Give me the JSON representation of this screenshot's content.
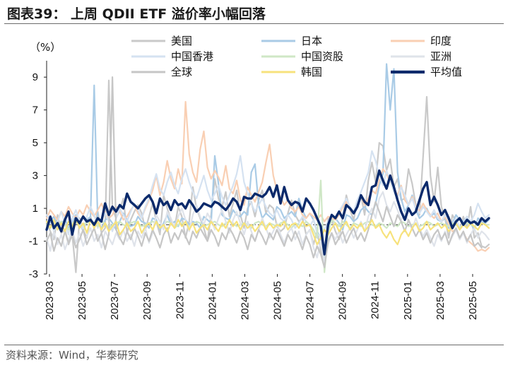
{
  "header": {
    "title": "图表39：  上周 QDII ETF 溢价率小幅回落"
  },
  "footer": {
    "source": "资料来源：Wind，华泰研究"
  },
  "chart_data": {
    "type": "line",
    "title": "",
    "ylabel": "（%）",
    "ylim": [
      -3,
      10
    ],
    "yticks": [
      9,
      7,
      5,
      3,
      1,
      -1,
      -3
    ],
    "xticks": [
      "2023-03",
      "2023-05",
      "2023-07",
      "2023-09",
      "2023-11",
      "2024-01",
      "2024-03",
      "2024-05",
      "2024-07",
      "2024-09",
      "2024-11",
      "2025-01",
      "2025-03",
      "2025-05"
    ],
    "x_start": "2023-03",
    "x_end": "2025-06",
    "legend_position": "top",
    "grid": false,
    "series": [
      {
        "name": "美国",
        "color": "#c9c9c9",
        "width": 2.2,
        "values": [
          0.2,
          -0.4,
          -0.9,
          0.6,
          -0.5,
          -0.3,
          -1.2,
          -0.6,
          -2.9,
          0.4,
          -0.3,
          -0.8,
          0.5,
          -0.2,
          0.8,
          -0.5,
          -0.2,
          8.8,
          1.0,
          0.4,
          0.9,
          1.6,
          -0.5,
          0.3,
          0.8,
          1.2,
          0.7,
          -0.3,
          0.5,
          1.3,
          0.2,
          -0.6,
          1.8,
          1.0,
          0.3,
          -0.2,
          1.1,
          0.5,
          -0.8,
          0.2,
          2.3,
          1.0,
          0.4,
          -0.2,
          -1.0,
          0.6,
          2.8,
          1.6,
          1.1,
          2.0,
          0.5,
          1.3,
          2.1,
          0.6,
          -0.2,
          1.0,
          1.4,
          0.5,
          1.5,
          2.1,
          0.7,
          1.2,
          1.0,
          -0.1,
          -0.4,
          -0.2,
          0.7,
          1.5,
          0.6,
          0.2,
          0.4,
          -0.6,
          -0.3,
          -1.2,
          -0.4,
          -1.6,
          -2.6,
          0.4,
          0.3,
          -0.4,
          -0.9,
          0.5,
          1.8,
          0.9,
          0.3,
          1.5,
          1.8,
          0.6,
          2.7,
          3.8,
          2.6,
          5.0,
          4.8,
          3.3,
          4.0,
          2.3,
          2.8,
          1.5,
          1.6,
          3.4,
          2.5,
          1.2,
          0.6,
          4.2,
          7.8,
          3.0,
          1.4,
          3.5,
          1.1,
          0.4,
          -0.8,
          0.6,
          0.2,
          -0.3,
          0.5,
          -0.2,
          1.1,
          -0.8,
          -0.5,
          -1.3,
          -1.4,
          -1.2
        ]
      },
      {
        "name": "日本",
        "color": "#a9cbe6",
        "width": 2.2,
        "values": [
          -0.3,
          0.2,
          0.5,
          -0.1,
          0.0,
          0.4,
          -0.2,
          0.1,
          0.6,
          0.2,
          -0.4,
          0.3,
          0.5,
          8.5,
          0.1,
          -0.2,
          0.3,
          0.4,
          0.1,
          -0.3,
          0.2,
          0.7,
          0.3,
          -0.1,
          0.0,
          0.5,
          0.2,
          0.1,
          -0.2,
          0.4,
          0.3,
          -0.3,
          0.1,
          0.6,
          0.0,
          0.2,
          -0.1,
          0.4,
          0.3,
          0.0,
          0.2,
          0.1,
          -0.2,
          0.5,
          0.3,
          0.1,
          4.2,
          2.5,
          0.6,
          0.4,
          0.3,
          0.9,
          0.6,
          0.5,
          0.8,
          0.6,
          3.2,
          3.7,
          1.2,
          0.4,
          0.7,
          0.5,
          0.3,
          1.1,
          0.9,
          0.4,
          0.6,
          0.8,
          0.5,
          1.6,
          0.9,
          0.4,
          0.7,
          0.3,
          -0.4,
          -0.8,
          -2.3,
          -0.2,
          0.3,
          0.4,
          0.1,
          -0.3,
          0.6,
          0.5,
          0.2,
          0.4,
          0.9,
          1.1,
          0.8,
          0.6,
          1.3,
          2.4,
          3.1,
          9.8,
          7.0,
          9.5,
          3.2,
          1.6,
          0.8,
          1.2,
          1.8,
          0.9,
          0.4,
          0.6,
          1.0,
          0.5,
          0.7,
          0.3,
          0.2,
          0.4,
          -0.2,
          0.1,
          0.6,
          0.3,
          0.2,
          0.5,
          0.1,
          -0.3,
          0.4,
          0.2,
          0.1,
          0.3
        ]
      },
      {
        "name": "印度",
        "color": "#f9cfb3",
        "width": 2.2,
        "values": [
          0.4,
          0.9,
          0.6,
          0.3,
          0.8,
          0.5,
          1.1,
          0.7,
          0.4,
          0.9,
          0.6,
          1.2,
          0.8,
          0.5,
          0.9,
          1.3,
          0.7,
          0.4,
          0.6,
          1.1,
          0.8,
          0.3,
          0.5,
          0.9,
          1.2,
          0.7,
          0.4,
          1.0,
          1.5,
          2.1,
          3.0,
          1.8,
          2.6,
          3.9,
          2.8,
          2.2,
          3.4,
          2.5,
          7.5,
          4.3,
          3.2,
          2.6,
          4.6,
          5.7,
          3.5,
          2.8,
          3.3,
          2.9,
          2.4,
          3.6,
          2.2,
          1.9,
          2.7,
          1.5,
          1.2,
          2.3,
          1.8,
          1.4,
          2.0,
          2.6,
          3.8,
          4.9,
          3.0,
          2.1,
          1.7,
          1.2,
          1.5,
          1.0,
          0.8,
          1.1,
          0.6,
          0.4,
          0.7,
          0.5,
          0.3,
          0.6,
          0.2,
          0.5,
          0.4,
          0.3,
          0.6,
          1.1,
          1.4,
          0.9,
          0.7,
          1.3,
          1.8,
          1.2,
          1.6,
          2.1,
          1.9,
          2.7,
          3.4,
          3.1,
          2.6,
          2.2,
          1.8,
          2.4,
          1.5,
          1.2,
          1.7,
          1.1,
          0.8,
          1.3,
          0.9,
          0.6,
          0.4,
          0.7,
          0.2,
          0.5,
          0.0,
          -0.4,
          -0.3,
          -0.8,
          -0.5,
          -0.9,
          -1.1,
          -1.3,
          -1.6,
          -1.5,
          -1.6,
          -1.4
        ]
      },
      {
        "name": "中国香港",
        "color": "#d5e2f1",
        "width": 2.2,
        "values": [
          0.6,
          0.3,
          -0.4,
          0.2,
          0.8,
          0.1,
          -0.6,
          0.4,
          0.9,
          0.2,
          -0.3,
          0.5,
          1.1,
          0.6,
          -0.2,
          0.3,
          0.7,
          0.2,
          -0.4,
          0.4,
          1.0,
          0.6,
          0.2,
          0.8,
          1.3,
          0.9,
          0.4,
          1.1,
          1.6,
          2.4,
          3.1,
          2.2,
          1.8,
          2.6,
          3.2,
          2.4,
          1.9,
          2.8,
          3.4,
          2.6,
          2.0,
          1.6,
          2.3,
          3.0,
          2.1,
          1.5,
          1.9,
          2.4,
          1.7,
          1.2,
          1.8,
          2.4,
          3.1,
          4.2,
          2.6,
          1.9,
          1.3,
          0.8,
          1.2,
          1.6,
          1.1,
          0.7,
          0.5,
          0.9,
          0.4,
          0.2,
          0.6,
          0.3,
          -0.2,
          0.1,
          0.5,
          0.2,
          -0.1,
          0.3,
          -0.5,
          -0.8,
          -0.3,
          0.2,
          0.6,
          0.4,
          0.8,
          1.2,
          1.6,
          1.1,
          0.8,
          1.5,
          2.0,
          2.6,
          3.2,
          4.5,
          3.9,
          3.0,
          2.4,
          3.3,
          2.7,
          2.0,
          1.6,
          2.3,
          1.8,
          1.2,
          1.6,
          1.0,
          0.7,
          1.1,
          0.8,
          0.5,
          0.9,
          0.4,
          0.2,
          0.6,
          0.3,
          0.0,
          0.4,
          -0.2,
          0.1,
          0.5,
          0.2,
          0.6,
          1.3,
          0.8,
          0.4,
          0.6
        ]
      },
      {
        "name": "中国资股",
        "color": "#cfe7c6",
        "width": 2.2,
        "values": [
          0.0,
          -0.2,
          0.1,
          -0.1,
          0.2,
          0.0,
          -0.3,
          0.1,
          0.2,
          -0.1,
          0.0,
          0.1,
          0.3,
          0.1,
          -0.1,
          0.2,
          0.1,
          -0.2,
          0.0,
          0.1,
          0.2,
          0.0,
          -0.1,
          0.1,
          0.2,
          0.1,
          -0.1,
          0.0,
          0.1,
          0.2,
          0.1,
          -0.1,
          0.0,
          0.2,
          0.1,
          -0.2,
          0.0,
          0.1,
          0.1,
          -0.1,
          0.0,
          0.2,
          0.1,
          -0.1,
          0.0,
          0.1,
          0.2,
          0.0,
          -0.1,
          0.1,
          0.2,
          0.1,
          -0.1,
          0.0,
          0.1,
          0.0,
          -0.2,
          0.1,
          0.2,
          0.0,
          -0.1,
          0.1,
          0.0,
          -0.1,
          0.1,
          0.2,
          0.0,
          -0.2,
          0.1,
          0.0,
          -0.1,
          0.2,
          0.0,
          -0.3,
          -0.8,
          2.7,
          -2.9,
          -0.5,
          0.3,
          0.1,
          -0.1,
          0.2,
          0.0,
          -0.2,
          0.1,
          0.0,
          -0.1,
          0.1,
          0.2,
          0.0,
          -0.1,
          0.1,
          0.0,
          -0.2,
          0.1,
          0.0,
          -0.1,
          0.2,
          0.1,
          -0.1,
          0.0,
          0.1,
          -0.1,
          0.0,
          0.2,
          0.1,
          -0.1,
          0.0,
          0.1,
          0.0,
          -0.1,
          0.1,
          0.0,
          -0.2,
          0.0,
          0.1,
          0.0,
          -0.1,
          0.0,
          0.1,
          0.0,
          0.0
        ]
      },
      {
        "name": "亚洲",
        "color": "#dfe3ea",
        "width": 2.2,
        "values": [
          -0.8,
          -1.6,
          -0.4,
          -1.2,
          -0.6,
          -1.5,
          -0.9,
          -0.3,
          -1.1,
          -0.5,
          -1.3,
          -0.7,
          -0.2,
          -1.0,
          -0.6,
          -1.4,
          -0.4,
          -0.8,
          -1.2,
          -0.5,
          -0.9,
          -0.3,
          -1.0,
          -0.6,
          -1.3,
          -0.4,
          -0.8,
          -0.2,
          -1.1,
          -0.5,
          0.6,
          0.2,
          -0.3,
          0.8,
          0.4,
          -0.2,
          0.5,
          1.0,
          0.3,
          -0.4,
          0.6,
          1.2,
          0.5,
          0.0,
          0.7,
          0.3,
          -0.3,
          0.4,
          0.9,
          0.2,
          -0.5,
          0.3,
          0.8,
          0.1,
          -0.6,
          0.2,
          -0.4,
          -1.0,
          -0.3,
          0.4,
          -0.2,
          -0.8,
          -0.4,
          0.1,
          -0.6,
          -1.1,
          -0.5,
          -0.2,
          -0.9,
          -0.4,
          -1.2,
          -0.6,
          -0.3,
          -1.4,
          -2.0,
          -1.0,
          -2.3,
          -1.2,
          -0.5,
          -0.9,
          -0.4,
          -1.1,
          -0.6,
          -0.2,
          -0.8,
          -0.3,
          0.2,
          -0.4,
          0.5,
          1.0,
          0.4,
          1.6,
          2.0,
          1.2,
          0.8,
          1.4,
          0.9,
          0.3,
          0.7,
          0.2,
          -0.3,
          0.4,
          -0.2,
          -0.7,
          -0.3,
          -0.8,
          -1.3,
          -0.6,
          -1.0,
          -0.4,
          -1.2,
          -0.7,
          -0.3,
          -0.9,
          -0.5,
          -1.1,
          -0.6,
          -0.2,
          -0.8,
          -0.4,
          -0.6,
          -0.9
        ]
      },
      {
        "name": "全球",
        "color": "#c6c6c6",
        "width": 2.2,
        "values": [
          -1.0,
          -0.5,
          -1.6,
          -0.8,
          -1.3,
          -0.4,
          -1.1,
          -0.6,
          -1.4,
          -0.9,
          -0.3,
          -1.2,
          -0.7,
          -0.2,
          -1.0,
          -0.5,
          -1.5,
          -0.6,
          9.0,
          -0.3,
          -0.8,
          -1.2,
          -0.4,
          -0.9,
          -0.2,
          -0.7,
          -1.3,
          -0.5,
          -1.0,
          -0.3,
          -0.8,
          -1.4,
          -0.6,
          -0.2,
          -1.1,
          -0.5,
          -0.9,
          -0.3,
          -0.7,
          -1.2,
          -0.4,
          -0.8,
          -0.2,
          -0.6,
          -1.0,
          -0.3,
          -0.7,
          -1.3,
          -0.5,
          -0.9,
          -0.2,
          -0.6,
          -1.1,
          -0.4,
          -0.8,
          -1.5,
          -0.6,
          -1.0,
          -0.3,
          -0.7,
          -1.2,
          -0.5,
          -0.9,
          -0.3,
          -0.8,
          -1.3,
          -0.6,
          -1.0,
          -0.4,
          -0.9,
          -1.5,
          -0.7,
          -1.2,
          -2.0,
          -1.3,
          -1.8,
          -2.6,
          -1.0,
          -0.5,
          -1.2,
          -0.8,
          -0.4,
          -1.1,
          -0.6,
          -0.2,
          -0.9,
          -0.5,
          -1.0,
          -0.3,
          0.6,
          1.4,
          0.8,
          0.2,
          1.1,
          0.5,
          -0.1,
          0.6,
          0.2,
          -0.4,
          0.3,
          -0.2,
          -0.7,
          -0.3,
          -0.9,
          -0.5,
          -1.1,
          -0.6,
          -0.3,
          -0.9,
          -0.5,
          -1.2,
          -0.6,
          -0.2,
          -0.8,
          -0.4,
          -1.0,
          -0.6,
          -1.3,
          -1.1,
          -1.4
        ]
      },
      {
        "name": "韩国",
        "color": "#f7e27c",
        "width": 2.2,
        "values": [
          0.2,
          -0.2,
          0.3,
          -0.3,
          0.1,
          -0.4,
          0.2,
          -0.1,
          0.4,
          -0.2,
          0.1,
          -0.5,
          0.3,
          -0.2,
          0.2,
          -0.3,
          0.1,
          -0.4,
          -0.1,
          0.2,
          -0.6,
          -0.3,
          0.1,
          -0.4,
          -0.2,
          0.2,
          -0.5,
          -0.1,
          0.1,
          -0.3,
          0.2,
          -0.2,
          0.0,
          -0.4,
          0.1,
          -0.2,
          0.3,
          -0.1,
          0.2,
          -0.3,
          0.1,
          -0.5,
          -0.2,
          0.0,
          -0.3,
          0.2,
          -0.1,
          -0.4,
          0.1,
          -0.2,
          0.3,
          -0.1,
          0.2,
          -0.3,
          0.1,
          -0.2,
          0.0,
          -0.4,
          -0.1,
          0.2,
          -0.3,
          0.1,
          -0.2,
          0.0,
          -0.1,
          0.2,
          -0.3,
          0.0,
          0.1,
          -0.2,
          0.2,
          -0.1,
          0.0,
          -0.6,
          -1.2,
          -0.8,
          -0.3,
          -0.6,
          -0.2,
          0.1,
          -0.4,
          -0.1,
          0.2,
          -0.3,
          0.0,
          -0.2,
          0.1,
          -0.4,
          -0.1,
          0.3,
          -0.2,
          0.0,
          -0.5,
          -0.8,
          -0.4,
          -0.9,
          -1.2,
          -0.6,
          -0.3,
          -0.7,
          -0.2,
          0.1,
          -0.4,
          -0.2,
          0.2,
          -0.3,
          -0.1,
          0.1,
          -0.2,
          0.0,
          -0.4,
          -0.1,
          0.1,
          -0.3,
          0.0,
          -0.2,
          0.1,
          -0.1,
          -0.3,
          0.1,
          0.0,
          -0.2
        ]
      },
      {
        "name": "平均值",
        "color": "#0b2a6b",
        "width": 3.4,
        "values": [
          -0.3,
          0.5,
          -0.2,
          0.1,
          -0.4,
          0.3,
          0.8,
          -0.6,
          0.4,
          0.1,
          0.5,
          0.2,
          0.3,
          0.0,
          0.4,
          0.2,
          1.3,
          0.6,
          1.1,
          0.8,
          1.2,
          1.0,
          1.9,
          1.4,
          1.2,
          1.0,
          1.3,
          1.6,
          1.8,
          1.4,
          0.7,
          1.6,
          1.2,
          1.4,
          0.9,
          1.5,
          1.2,
          1.3,
          1.0,
          1.5,
          1.2,
          0.8,
          1.0,
          1.3,
          1.2,
          1.1,
          1.4,
          1.3,
          1.1,
          0.9,
          1.2,
          1.6,
          1.4,
          0.9,
          1.7,
          1.6,
          1.6,
          1.9,
          1.8,
          1.7,
          1.9,
          2.3,
          1.7,
          2.4,
          1.3,
          2.3,
          1.5,
          1.2,
          1.4,
          1.3,
          0.8,
          1.6,
          1.3,
          0.9,
          0.4,
          -0.1,
          -1.8,
          0.0,
          0.6,
          0.4,
          0.8,
          0.4,
          1.2,
          1.0,
          0.7,
          1.1,
          1.8,
          1.4,
          1.2,
          2.3,
          2.4,
          3.3,
          2.7,
          2.2,
          3.0,
          2.3,
          1.5,
          0.8,
          0.3,
          1.0,
          0.6,
          0.8,
          1.5,
          2.2,
          2.6,
          1.2,
          1.7,
          1.2,
          0.6,
          0.9,
          0.4,
          -0.2,
          0.2,
          0.4,
          0.0,
          0.3,
          0.1,
          0.2,
          0.0,
          0.4,
          0.2,
          0.4
        ]
      }
    ]
  }
}
